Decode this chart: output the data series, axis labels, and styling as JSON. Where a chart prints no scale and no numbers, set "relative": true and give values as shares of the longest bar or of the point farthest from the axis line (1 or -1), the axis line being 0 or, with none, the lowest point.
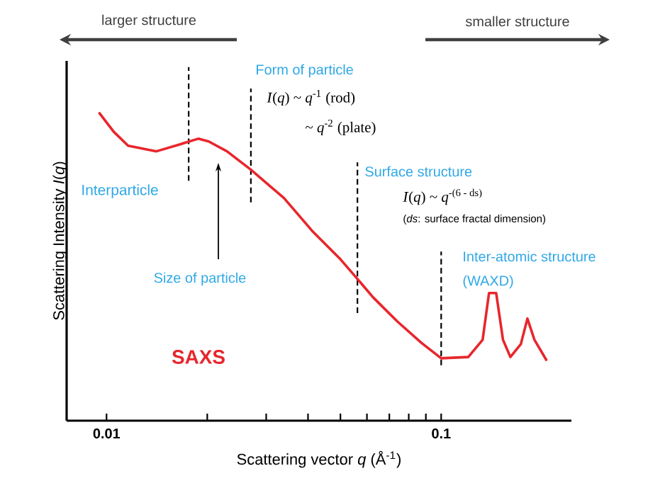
{
  "chart_data": {
    "type": "line",
    "relative": true,
    "log": "x",
    "marker": "none",
    "line_style": "solid",
    "grid": false,
    "xlabel": "Scattering vector *q* (Å$^{-1}$)",
    "ylabel": "Scattering Intensity *I*(*q*)",
    "color": "#e8262c",
    "x": [
      0.00953,
      0.0105,
      0.0116,
      0.0141,
      0.0166,
      0.0188,
      0.0202,
      0.0229,
      0.027,
      0.0339,
      0.0411,
      0.05,
      0.0562,
      0.0626,
      0.0739,
      0.0873,
      0.1,
      0.1205,
      0.133,
      0.139,
      0.146,
      0.153,
      0.161,
      0.173,
      0.181,
      0.19,
      0.206
    ],
    "values": [
      1.0,
      0.94,
      0.894,
      0.876,
      0.899,
      0.917,
      0.908,
      0.876,
      0.816,
      0.724,
      0.618,
      0.525,
      0.461,
      0.401,
      0.323,
      0.253,
      0.203,
      0.207,
      0.263,
      0.415,
      0.415,
      0.263,
      0.207,
      0.249,
      0.332,
      0.263,
      0.198
    ],
    "xlim": [
      0.0076,
      0.245
    ],
    "xticks": [
      0.01,
      {
        "value": 0.02,
        "label": null
      },
      {
        "value": 0.03,
        "label": null
      },
      {
        "value": 0.04,
        "label": null
      },
      {
        "value": 0.05,
        "label": null
      },
      {
        "value": 0.06,
        "label": null
      },
      {
        "value": 0.07,
        "label": null
      },
      {
        "value": 0.08,
        "label": null
      },
      {
        "value": 0.09,
        "label": null
      },
      0.1
    ],
    "ref_lines": [
      {
        "axis": "x",
        "value": 0.0176,
        "line_style": "dashed",
        "color": "#000000"
      },
      {
        "axis": "x",
        "value": 0.027,
        "line_style": "dashed",
        "color": "#000000"
      },
      {
        "axis": "x",
        "value": 0.0562,
        "line_style": "dashed",
        "color": "#000000"
      },
      {
        "axis": "x",
        "value": 0.1,
        "line_style": "dashed",
        "color": "#000000"
      }
    ],
    "annotations": [
      "larger structure",
      "smaller structure",
      "Form of particle",
      "*I*(*q*) ~ *q*$^{-1}$ (rod)",
      "~ *q*$^{-2}$ (plate)",
      "Surface structure",
      "*I*(*q*) ~ *q*$^{-(6 - ds)}$",
      "(*ds*: surface fractal dimension)",
      "Interparticle",
      "Size of particle",
      "Inter-atomic structure",
      "(WAXD)",
      "SAXS"
    ]
  }
}
